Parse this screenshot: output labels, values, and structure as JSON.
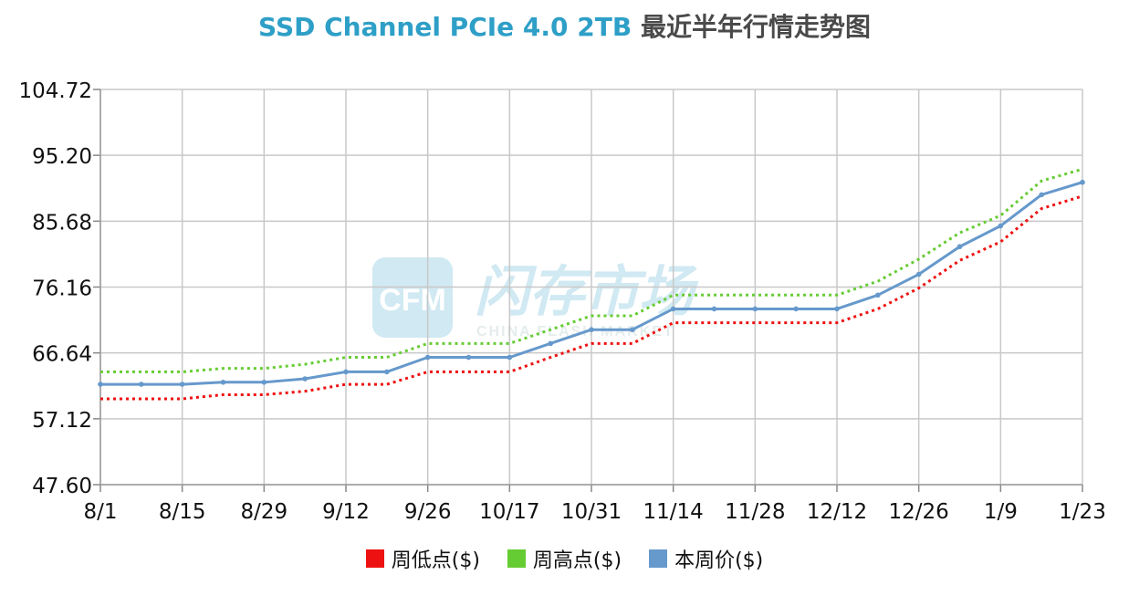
{
  "title": {
    "en": "SSD Channel PCIe 4.0 2TB",
    "cn": "最近半年行情走势图"
  },
  "watermark": {
    "brand": "闪存市场",
    "logo": "CFM",
    "sub": "CHINA FLASH MARKET"
  },
  "colors": {
    "low": "#ee1111",
    "high": "#66cc33",
    "current": "#6699cc",
    "grid": "#c8c8c8",
    "title_en": "#2e9fc7"
  },
  "chart_data": {
    "type": "line",
    "ylim": [
      47.6,
      104.72
    ],
    "y_ticks": [
      "47.60",
      "57.12",
      "66.64",
      "76.16",
      "85.68",
      "95.20",
      "104.72"
    ],
    "x_ticks": [
      "8/1",
      "8/15",
      "8/29",
      "9/12",
      "9/26",
      "10/17",
      "10/31",
      "11/14",
      "11/28",
      "12/12",
      "12/26",
      "1/9",
      "1/23"
    ],
    "grid": true,
    "legend_position": "bottom",
    "series": [
      {
        "name": "周低点($)",
        "key": "low",
        "style": "dotted",
        "values": [
          60.0,
          60.0,
          60.0,
          60.6,
          60.6,
          61.1,
          62.1,
          62.1,
          63.9,
          63.9,
          63.9,
          66.0,
          68.0,
          68.0,
          71.0,
          71.0,
          71.0,
          71.0,
          71.0,
          73.0,
          76.0,
          80.0,
          82.7,
          87.5,
          89.3
        ]
      },
      {
        "name": "周高点($)",
        "key": "high",
        "style": "dotted",
        "values": [
          63.9,
          63.9,
          63.9,
          64.4,
          64.4,
          65.0,
          66.0,
          66.0,
          68.0,
          68.0,
          68.0,
          70.0,
          72.0,
          72.0,
          75.0,
          75.0,
          75.0,
          75.0,
          75.0,
          77.0,
          80.2,
          84.0,
          86.5,
          91.5,
          93.2
        ]
      },
      {
        "name": "本周价($)",
        "key": "current",
        "style": "solid",
        "values": [
          62.1,
          62.1,
          62.1,
          62.4,
          62.4,
          62.9,
          63.9,
          63.9,
          66.0,
          66.0,
          66.0,
          68.0,
          70.0,
          70.0,
          73.0,
          73.0,
          73.0,
          73.0,
          73.0,
          75.0,
          78.0,
          82.0,
          85.0,
          89.5,
          91.3
        ]
      }
    ]
  }
}
